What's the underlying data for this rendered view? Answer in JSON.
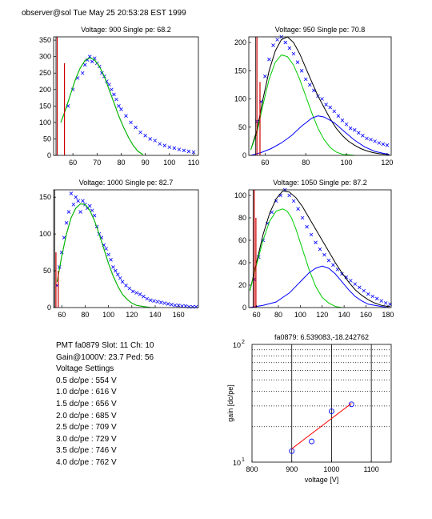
{
  "header": "observer@sol  Tue May 25 20:53:28 EST 1999",
  "info": {
    "pmt_line": "PMT fa0879 Slot: 11 Ch: 10",
    "gain_line": "Gain@1000V: 23.7 Ped: 56",
    "settings_title": "Voltage Settings",
    "settings": [
      "0.5 dc/pe : 554 V",
      "1.0 dc/pe : 616 V",
      "1.5 dc/pe : 656 V",
      "2.0 dc/pe : 685 V",
      "2.5 dc/pe : 709 V",
      "3.0 dc/pe : 729 V",
      "3.5 dc/pe : 746 V",
      "4.0 dc/pe : 762 V"
    ]
  },
  "colors": {
    "data": "#0000ff",
    "fit_total": "#000000",
    "fit_single": "#00cc00",
    "fit_double": "#0000ff",
    "pedestal": "#cc0000",
    "gain_fit": "#ff0000"
  },
  "chart_data": [
    {
      "type": "scatter",
      "title": "Voltage: 900 Single pe: 68.2",
      "xlim": [
        52,
        112
      ],
      "ylim": [
        0,
        360
      ],
      "xticks": [
        60,
        70,
        80,
        90,
        100,
        110
      ],
      "yticks": [
        0,
        50,
        100,
        150,
        200,
        250,
        300,
        350
      ],
      "series": [
        {
          "kind": "points",
          "x": [
            58,
            60,
            62,
            64,
            65,
            66,
            67,
            68,
            69,
            70,
            71,
            72,
            73,
            74,
            75,
            76,
            77,
            78,
            79,
            80,
            82,
            84,
            86,
            88,
            90,
            92,
            94,
            96,
            98,
            100,
            102,
            104,
            106,
            108,
            110
          ],
          "y": [
            150,
            200,
            235,
            250,
            275,
            290,
            300,
            285,
            295,
            280,
            270,
            250,
            240,
            225,
            215,
            200,
            185,
            170,
            150,
            140,
            120,
            100,
            85,
            70,
            60,
            50,
            45,
            35,
            30,
            25,
            22,
            18,
            15,
            12,
            10
          ]
        },
        {
          "kind": "line",
          "role": "total",
          "x": [
            55,
            57,
            59,
            61,
            63,
            65,
            67,
            69,
            71,
            73,
            75,
            77,
            79,
            81,
            83,
            85,
            87,
            89
          ],
          "y": [
            100,
            140,
            185,
            230,
            265,
            288,
            297,
            290,
            270,
            240,
            200,
            160,
            120,
            85,
            55,
            30,
            12,
            3
          ]
        },
        {
          "kind": "line",
          "role": "single",
          "x": [
            55,
            57,
            59,
            61,
            63,
            65,
            67,
            69,
            71,
            73,
            75,
            77,
            79,
            81,
            83,
            85,
            87,
            89
          ],
          "y": [
            100,
            140,
            185,
            230,
            265,
            288,
            297,
            290,
            270,
            240,
            200,
            160,
            120,
            85,
            55,
            30,
            12,
            3
          ]
        },
        {
          "kind": "pedestal",
          "x": [
            53.5,
            56.5
          ],
          "heights": [
            360,
            280
          ]
        }
      ]
    },
    {
      "type": "scatter",
      "title": "Voltage: 950 Single pe: 70.8",
      "xlim": [
        52,
        122
      ],
      "ylim": [
        0,
        210
      ],
      "xticks": [
        60,
        80,
        100,
        120
      ],
      "yticks": [
        0,
        50,
        100,
        150,
        200
      ],
      "series": [
        {
          "kind": "points",
          "x": [
            56,
            58,
            60,
            62,
            64,
            66,
            68,
            70,
            72,
            74,
            76,
            78,
            80,
            82,
            84,
            86,
            88,
            90,
            92,
            94,
            96,
            98,
            100,
            102,
            104,
            106,
            108,
            110,
            112,
            114,
            116,
            118,
            120
          ],
          "y": [
            60,
            95,
            140,
            170,
            195,
            205,
            210,
            200,
            190,
            180,
            165,
            150,
            135,
            125,
            115,
            105,
            100,
            90,
            85,
            78,
            70,
            62,
            55,
            48,
            45,
            40,
            35,
            30,
            28,
            25,
            22,
            20,
            18
          ]
        },
        {
          "kind": "line",
          "role": "total",
          "x": [
            53,
            56,
            59,
            62,
            65,
            68,
            71,
            74,
            77,
            80,
            83,
            86,
            89,
            92,
            95,
            98,
            101,
            104,
            107,
            110,
            113,
            116,
            119,
            121
          ],
          "y": [
            10,
            45,
            100,
            150,
            185,
            205,
            210,
            200,
            180,
            155,
            130,
            105,
            85,
            65,
            48,
            35,
            25,
            18,
            12,
            8,
            5,
            3,
            2,
            1
          ]
        },
        {
          "kind": "line",
          "role": "single",
          "x": [
            53,
            56,
            59,
            62,
            65,
            68,
            71,
            74,
            77,
            80,
            83,
            86,
            89,
            92,
            95,
            98,
            101,
            104
          ],
          "y": [
            10,
            40,
            90,
            135,
            165,
            178,
            175,
            160,
            135,
            105,
            75,
            48,
            28,
            14,
            6,
            2,
            1,
            0
          ]
        },
        {
          "kind": "line",
          "role": "double",
          "x": [
            53,
            58,
            63,
            68,
            73,
            78,
            83,
            86,
            89,
            94,
            99,
            104,
            109,
            114,
            119,
            121
          ],
          "y": [
            0,
            5,
            12,
            22,
            35,
            52,
            66,
            70,
            68,
            58,
            42,
            27,
            15,
            7,
            3,
            2
          ]
        },
        {
          "kind": "pedestal",
          "x": [
            56,
            57.5
          ],
          "heights": [
            210,
            130
          ]
        }
      ]
    },
    {
      "type": "scatter",
      "title": "Voltage: 1000 Single pe: 82.7",
      "xlim": [
        53,
        177
      ],
      "ylim": [
        0,
        160
      ],
      "xticks": [
        60,
        80,
        100,
        120,
        140,
        160
      ],
      "yticks": [
        0,
        50,
        100,
        150
      ],
      "series": [
        {
          "kind": "points",
          "x": [
            56,
            58,
            60,
            62,
            64,
            66,
            68,
            70,
            72,
            74,
            76,
            78,
            80,
            82,
            84,
            86,
            88,
            90,
            92,
            94,
            96,
            98,
            100,
            102,
            104,
            106,
            108,
            110,
            112,
            115,
            118,
            121,
            124,
            127,
            130,
            133,
            136,
            139,
            142,
            145,
            148,
            151,
            154,
            157,
            160,
            163,
            166,
            169,
            172,
            175
          ],
          "y": [
            30,
            55,
            75,
            95,
            115,
            130,
            155,
            140,
            150,
            145,
            130,
            145,
            140,
            135,
            138,
            132,
            125,
            110,
            100,
            95,
            85,
            80,
            72,
            65,
            55,
            50,
            45,
            40,
            35,
            30,
            26,
            22,
            20,
            18,
            15,
            12,
            10,
            9,
            8,
            7,
            6,
            5,
            4,
            3,
            3,
            2,
            2,
            1,
            1,
            1
          ]
        },
        {
          "kind": "line",
          "role": "total",
          "x": [
            56,
            60,
            64,
            68,
            72,
            76,
            80,
            84,
            88,
            92,
            96,
            100,
            104,
            108,
            112,
            116,
            120,
            124,
            128,
            132,
            136,
            140
          ],
          "y": [
            35,
            70,
            100,
            122,
            135,
            141,
            140,
            132,
            118,
            100,
            80,
            60,
            43,
            29,
            18,
            11,
            6,
            3,
            2,
            1,
            0,
            0
          ]
        },
        {
          "kind": "line",
          "role": "single",
          "x": [
            56,
            60,
            64,
            68,
            72,
            76,
            80,
            84,
            88,
            92,
            96,
            100,
            104,
            108,
            112,
            116,
            120,
            124,
            128,
            132,
            136,
            140
          ],
          "y": [
            35,
            70,
            100,
            122,
            135,
            141,
            140,
            132,
            118,
            100,
            80,
            60,
            43,
            29,
            18,
            11,
            6,
            3,
            2,
            1,
            0,
            0
          ]
        },
        {
          "kind": "pedestal",
          "x": [
            55,
            57
          ],
          "heights": [
            75,
            50
          ]
        }
      ]
    },
    {
      "type": "scatter",
      "title": "Voltage: 1050 Single pe: 87.2",
      "xlim": [
        53,
        183
      ],
      "ylim": [
        0,
        105
      ],
      "xticks": [
        60,
        80,
        100,
        120,
        140,
        160,
        180
      ],
      "yticks": [
        0,
        20,
        40,
        60,
        80,
        100
      ],
      "series": [
        {
          "kind": "points",
          "x": [
            58,
            62,
            66,
            70,
            74,
            78,
            82,
            86,
            90,
            94,
            98,
            102,
            106,
            110,
            114,
            118,
            122,
            126,
            130,
            134,
            138,
            142,
            146,
            150,
            154,
            158,
            162,
            166,
            170,
            174,
            178,
            182
          ],
          "y": [
            25,
            45,
            60,
            75,
            85,
            95,
            100,
            105,
            100,
            95,
            88,
            80,
            72,
            65,
            58,
            52,
            47,
            42,
            38,
            34,
            30,
            27,
            24,
            21,
            18,
            15,
            12,
            10,
            8,
            6,
            4,
            3
          ]
        },
        {
          "kind": "line",
          "role": "total",
          "x": [
            54,
            60,
            66,
            72,
            78,
            84,
            90,
            96,
            102,
            108,
            114,
            120,
            126,
            132,
            138,
            144,
            150,
            156,
            162,
            168,
            174,
            180,
            182
          ],
          "y": [
            15,
            40,
            65,
            84,
            97,
            104,
            103,
            98,
            90,
            80,
            70,
            60,
            50,
            40,
            31,
            23,
            16,
            11,
            7,
            4,
            2,
            1,
            1
          ]
        },
        {
          "kind": "line",
          "role": "single",
          "x": [
            54,
            60,
            66,
            72,
            78,
            84,
            88,
            92,
            96,
            102,
            108,
            114,
            120,
            126,
            132,
            138
          ],
          "y": [
            15,
            38,
            60,
            77,
            86,
            88,
            86,
            80,
            70,
            52,
            34,
            19,
            9,
            4,
            1,
            0
          ]
        },
        {
          "kind": "line",
          "role": "double",
          "x": [
            54,
            66,
            78,
            90,
            102,
            108,
            114,
            120,
            126,
            132,
            138,
            144,
            150,
            156,
            162,
            168,
            174,
            180,
            182
          ],
          "y": [
            0,
            2,
            5,
            13,
            25,
            31,
            35,
            37,
            35,
            30,
            23,
            16,
            10,
            6,
            3,
            2,
            1,
            0,
            0
          ]
        },
        {
          "kind": "pedestal",
          "x": [
            58,
            59.5
          ],
          "heights": [
            105,
            80
          ]
        }
      ]
    },
    {
      "type": "scatter",
      "title": "fa0879: 6.539083,-18.242762",
      "xlabel": "voltage [V]",
      "ylabel": "gain [dc/pe]",
      "xlim": [
        800,
        1150
      ],
      "ylim": [
        10,
        100
      ],
      "yscale": "log",
      "xticks": [
        800,
        900,
        1000,
        1100
      ],
      "ytick_labels": [
        "10",
        "10"
      ],
      "ytick_exponents": [
        "1",
        "2"
      ],
      "grid": "dotted horizontal at 20-90, solid vertical at 900, 1000, 1100",
      "series": [
        {
          "kind": "points",
          "x": [
            900,
            950,
            1000,
            1050
          ],
          "y": [
            12.4,
            15.0,
            27.0,
            31.0
          ]
        },
        {
          "kind": "line",
          "role": "fit",
          "x": [
            900,
            1050
          ],
          "y": [
            13.0,
            31.5
          ]
        }
      ]
    }
  ]
}
